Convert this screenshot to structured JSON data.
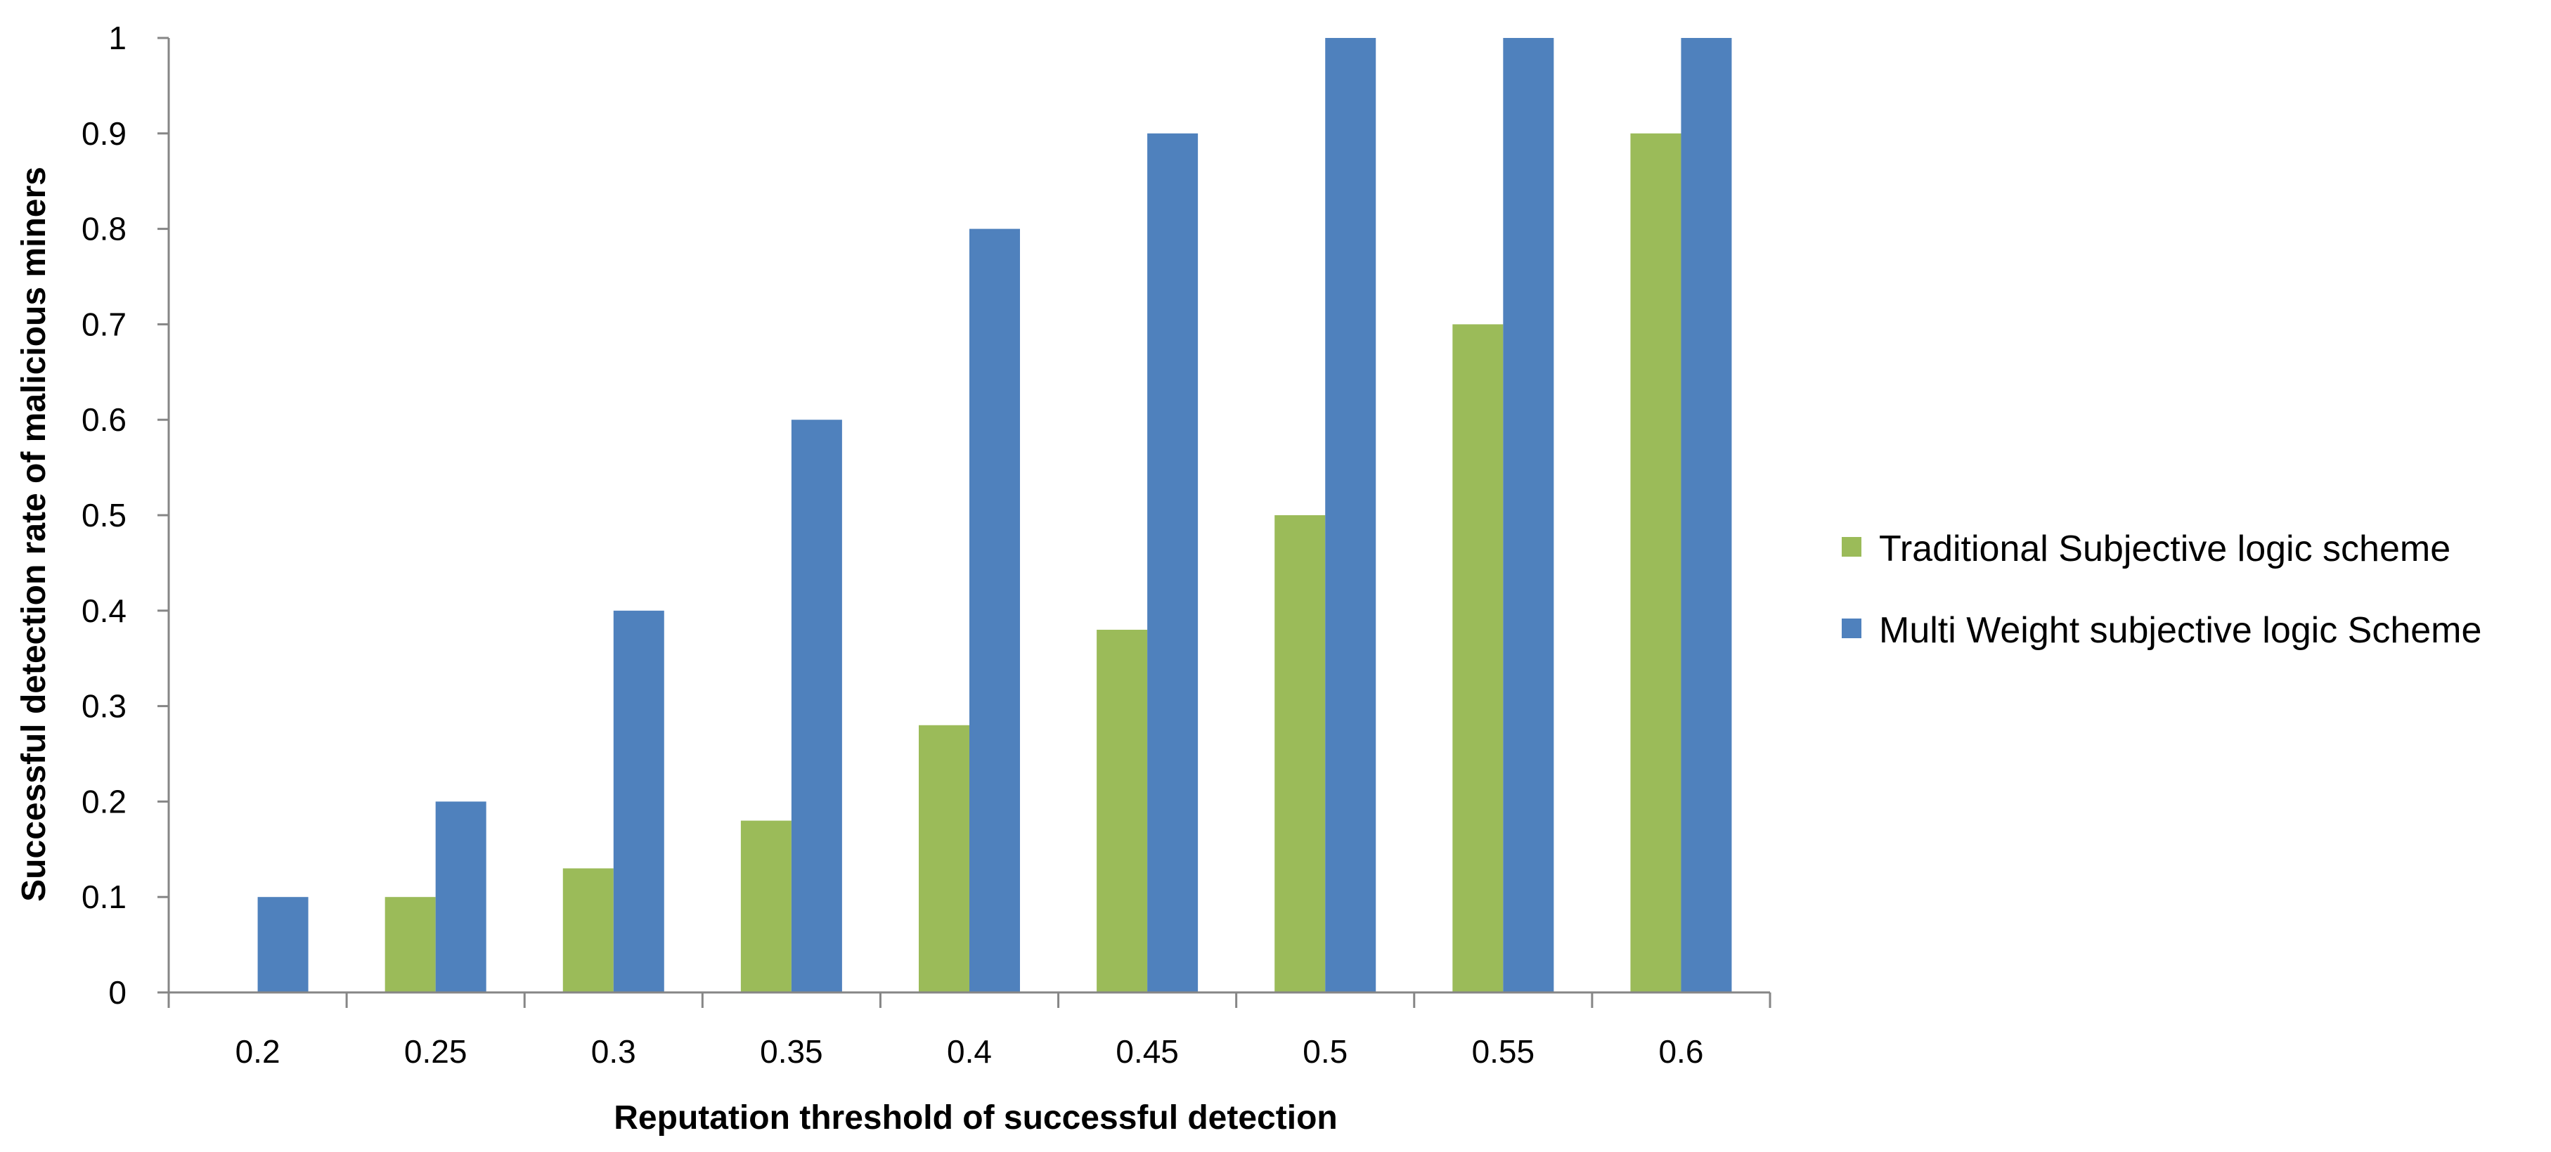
{
  "chart_data": {
    "type": "bar",
    "title": "",
    "xlabel": "Reputation threshold of successful detection",
    "ylabel": "Successful detection rate of malicious miners",
    "categories": [
      "0.2",
      "0.25",
      "0.3",
      "0.35",
      "0.4",
      "0.45",
      "0.5",
      "0.55",
      "0.6"
    ],
    "series": [
      {
        "name": "Traditional Subjective logic scheme",
        "color": "#9BBB59",
        "values": [
          0,
          0.1,
          0.13,
          0.18,
          0.28,
          0.38,
          0.5,
          0.7,
          0.9
        ]
      },
      {
        "name": "Multi Weight subjective logic Scheme",
        "color": "#4F81BD",
        "values": [
          0.1,
          0.2,
          0.4,
          0.6,
          0.8,
          0.9,
          1.0,
          1.0,
          1.0
        ]
      }
    ],
    "ylim": [
      0,
      1
    ],
    "yticks": [
      "0",
      "0.1",
      "0.2",
      "0.3",
      "0.4",
      "0.5",
      "0.6",
      "0.7",
      "0.8",
      "0.9",
      "1"
    ],
    "grid": false,
    "legend_position": "right"
  }
}
